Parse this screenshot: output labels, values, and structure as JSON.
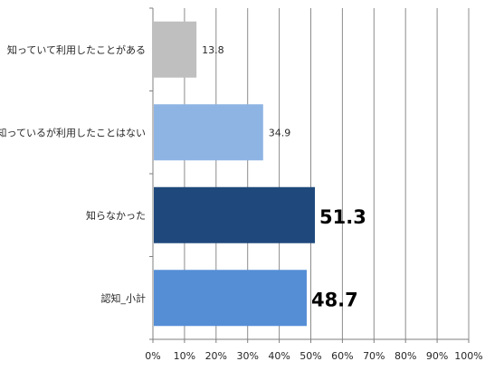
{
  "chart_data": {
    "type": "bar",
    "orientation": "horizontal",
    "categories": [
      "知っていて利用したことがある",
      "知っているが利用したことはない",
      "知らなかった",
      "認知_小計"
    ],
    "values": [
      13.8,
      34.9,
      51.3,
      48.7
    ],
    "value_labels": [
      "13.8",
      "34.9",
      "51.3",
      "48.7"
    ],
    "emphasized_labels": [
      false,
      false,
      true,
      true
    ],
    "bar_colors": [
      "#bfbfbf",
      "#8eb4e3",
      "#1f497d",
      "#558ed5"
    ],
    "xlim": [
      0,
      100
    ],
    "x_ticks": [
      0,
      10,
      20,
      30,
      40,
      50,
      60,
      70,
      80,
      90,
      100
    ],
    "x_tick_labels": [
      "0%",
      "10%",
      "20%",
      "30%",
      "40%",
      "50%",
      "60%",
      "70%",
      "80%",
      "90%",
      "100%"
    ],
    "grid": true,
    "gridline_color": "#8c8c8c",
    "axis_color": "#7f7f7f"
  }
}
